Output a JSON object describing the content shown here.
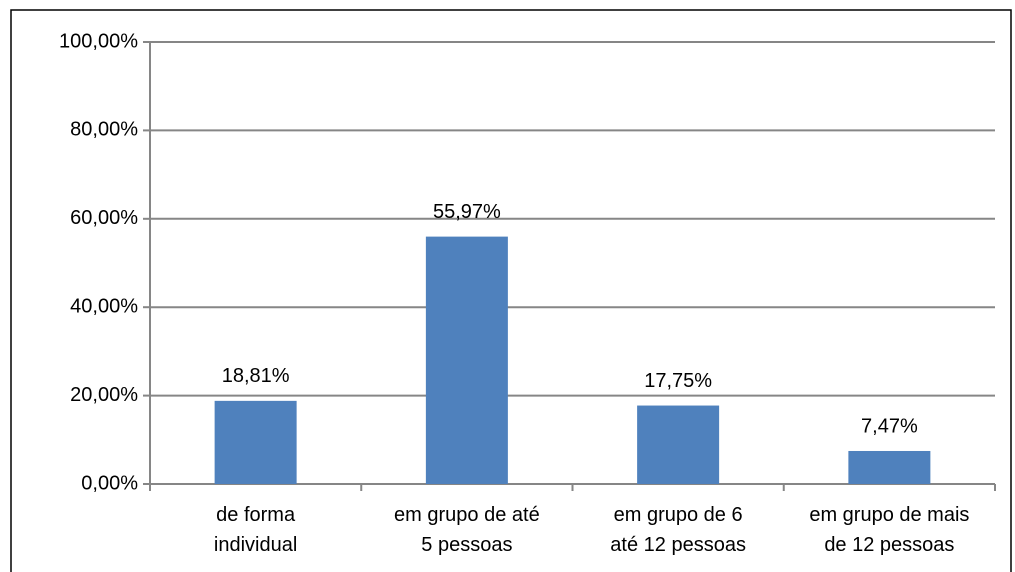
{
  "chart_data": {
    "type": "bar",
    "categories": [
      [
        "de forma",
        "individual"
      ],
      [
        "em grupo de até",
        "5 pessoas"
      ],
      [
        "em grupo de 6",
        "até 12 pessoas"
      ],
      [
        "em grupo de mais",
        "de 12 pessoas"
      ]
    ],
    "values": [
      18.81,
      55.97,
      17.75,
      7.47
    ],
    "value_labels": [
      "18,81%",
      "55,97%",
      "17,75%",
      "7,47%"
    ],
    "color": "#4f81bd",
    "ylim": [
      0,
      100
    ],
    "yticks": [
      {
        "value": 0,
        "label": "0,00%"
      },
      {
        "value": 20,
        "label": "20,00%"
      },
      {
        "value": 40,
        "label": "40,00%"
      },
      {
        "value": 60,
        "label": "60,00%"
      },
      {
        "value": 80,
        "label": "80,00%"
      },
      {
        "value": 100,
        "label": "100,00%"
      }
    ],
    "grid": true
  }
}
